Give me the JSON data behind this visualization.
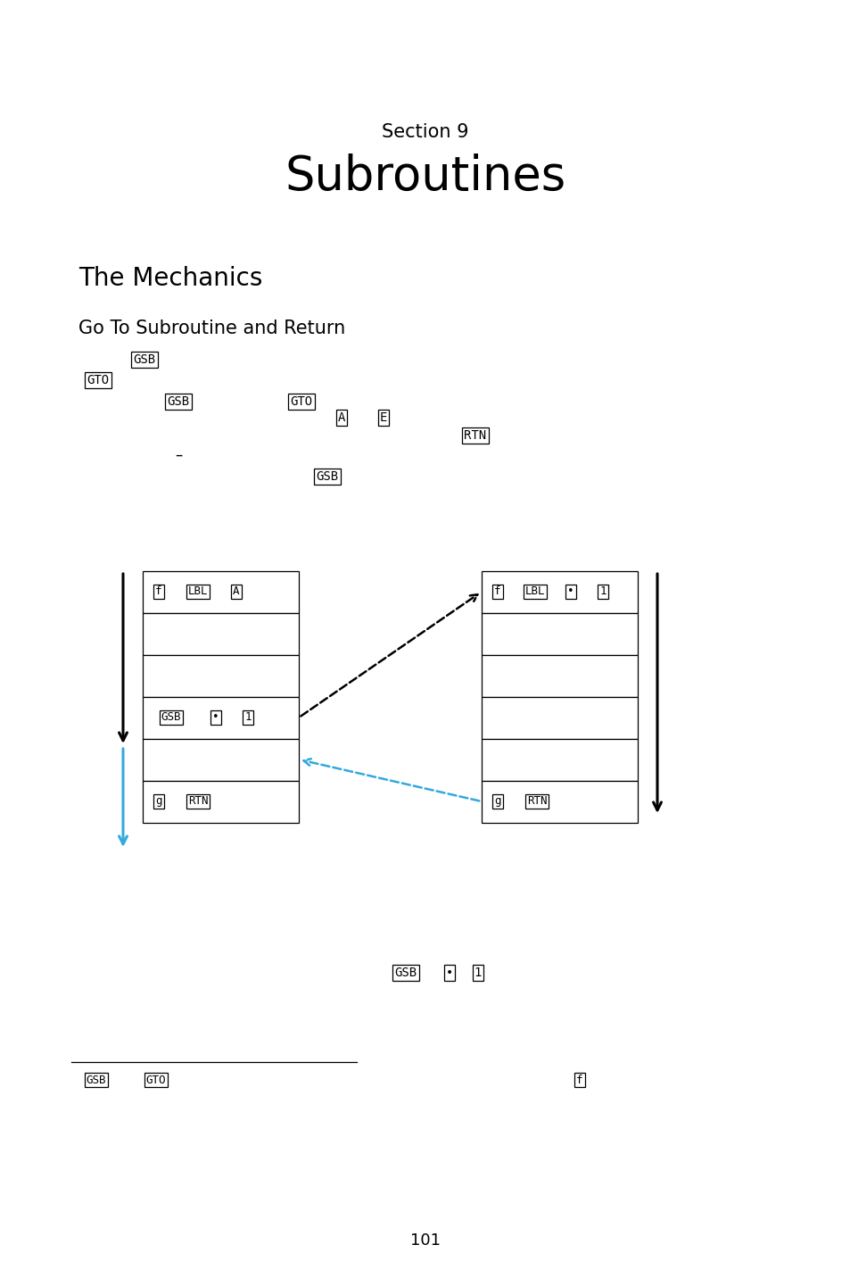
{
  "bg_color": "#ffffff",
  "section_label": "Section 9",
  "section_title": "Subroutines",
  "mechanics_title": "The Mechanics",
  "goto_title": "Go To Subroutine and Return",
  "page_number": "101"
}
